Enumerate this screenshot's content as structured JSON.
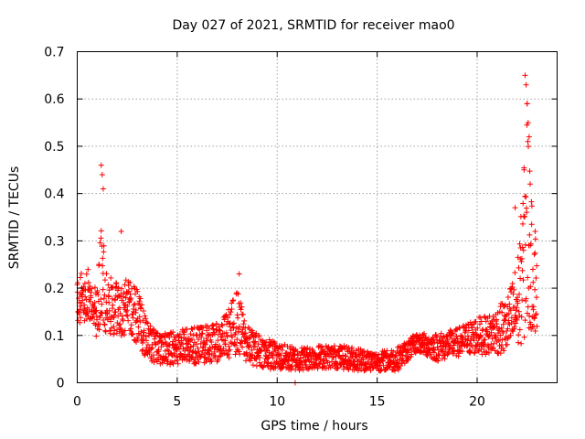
{
  "chart_data": {
    "type": "scatter",
    "title": "Day 027 of 2021, SRMTID for receiver mao0",
    "xlabel": "GPS time / hours",
    "ylabel": "SRMTID / TECUs",
    "xlim": [
      0,
      24
    ],
    "ylim": [
      0,
      0.7
    ],
    "xticks": [
      0,
      5,
      10,
      15,
      20
    ],
    "xtick_labels": [
      "0",
      "5",
      "10",
      "15",
      "20"
    ],
    "yticks": [
      0,
      0.1,
      0.2,
      0.3,
      0.4,
      0.5,
      0.6,
      0.7
    ],
    "ytick_labels": [
      "0",
      "0.1",
      "0.2",
      "0.3",
      "0.4",
      "0.5",
      "0.6",
      "0.7"
    ],
    "grid": true,
    "marker": "+",
    "marker_color": "#ff0000",
    "series": [
      {
        "name": "SRMTID",
        "envelope_hours": [
          0.0,
          0.5,
          1.0,
          1.2,
          1.5,
          2.0,
          2.5,
          3.0,
          3.5,
          4.0,
          5.0,
          6.0,
          7.0,
          7.5,
          8.0,
          8.5,
          9.0,
          10.0,
          11.0,
          12.0,
          13.0,
          14.0,
          15.0,
          16.0,
          17.0,
          18.0,
          19.0,
          20.0,
          20.5,
          21.0,
          21.5,
          22.0,
          22.3,
          22.5,
          22.7,
          23.0
        ],
        "envelope_center": [
          0.17,
          0.19,
          0.15,
          0.22,
          0.17,
          0.15,
          0.16,
          0.14,
          0.09,
          0.07,
          0.075,
          0.08,
          0.085,
          0.1,
          0.13,
          0.08,
          0.07,
          0.055,
          0.05,
          0.055,
          0.055,
          0.05,
          0.045,
          0.05,
          0.085,
          0.075,
          0.085,
          0.1,
          0.1,
          0.11,
          0.12,
          0.16,
          0.25,
          0.35,
          0.25,
          0.2
        ],
        "envelope_spread": [
          0.05,
          0.06,
          0.06,
          0.12,
          0.06,
          0.06,
          0.06,
          0.06,
          0.04,
          0.035,
          0.035,
          0.04,
          0.04,
          0.05,
          0.07,
          0.04,
          0.035,
          0.03,
          0.025,
          0.025,
          0.025,
          0.025,
          0.02,
          0.025,
          0.02,
          0.03,
          0.03,
          0.04,
          0.04,
          0.05,
          0.06,
          0.1,
          0.16,
          0.28,
          0.14,
          0.1
        ],
        "highlights": [
          {
            "x": 1.2,
            "y": 0.46
          },
          {
            "x": 1.25,
            "y": 0.44
          },
          {
            "x": 1.3,
            "y": 0.41
          },
          {
            "x": 22.4,
            "y": 0.65
          },
          {
            "x": 22.45,
            "y": 0.63
          },
          {
            "x": 22.5,
            "y": 0.59
          },
          {
            "x": 22.55,
            "y": 0.55
          },
          {
            "x": 22.6,
            "y": 0.52
          },
          {
            "x": 22.35,
            "y": 0.45
          },
          {
            "x": 22.65,
            "y": 0.42
          },
          {
            "x": 21.9,
            "y": 0.37
          },
          {
            "x": 22.9,
            "y": 0.32
          },
          {
            "x": 2.2,
            "y": 0.32
          },
          {
            "x": 8.1,
            "y": 0.23
          },
          {
            "x": 10.9,
            "y": 0.0
          }
        ]
      }
    ]
  }
}
